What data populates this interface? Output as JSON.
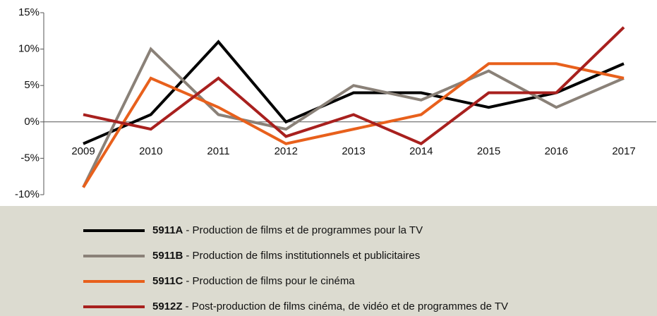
{
  "chart_data": {
    "type": "line",
    "categories": [
      "2009",
      "2010",
      "2011",
      "2012",
      "2013",
      "2014",
      "2015",
      "2016",
      "2017"
    ],
    "series": [
      {
        "name": "5911A",
        "description": "- Production de films et de programmes pour la TV",
        "color": "#000000",
        "values": [
          -3,
          1,
          11,
          0,
          4,
          4,
          2,
          4,
          8
        ]
      },
      {
        "name": "5911B",
        "description": "- Production de films institutionnels et publicitaires",
        "color": "#8a8178",
        "values": [
          -9,
          10,
          1,
          -1,
          5,
          3,
          7,
          2,
          6
        ]
      },
      {
        "name": "5911C",
        "description": "- Production de films pour le cinéma",
        "color": "#e8601c",
        "values": [
          -9,
          6,
          2,
          -3,
          -1,
          1,
          8,
          8,
          6
        ]
      },
      {
        "name": "5912Z",
        "description": "- Post-production de films cinéma, de vidéo et de programmes de TV",
        "color": "#a8201e",
        "values": [
          1,
          -1,
          6,
          -2,
          1,
          -3,
          4,
          4,
          13
        ]
      }
    ],
    "ylim": [
      -10,
      15
    ],
    "yticks": [
      {
        "value": -10,
        "label": "-10%"
      },
      {
        "value": -5,
        "label": "-5%"
      },
      {
        "value": 0,
        "label": "0%"
      },
      {
        "value": 5,
        "label": "5%"
      },
      {
        "value": 10,
        "label": "10%"
      },
      {
        "value": 15,
        "label": "15%"
      }
    ],
    "grid": false,
    "legend": "bottom"
  }
}
